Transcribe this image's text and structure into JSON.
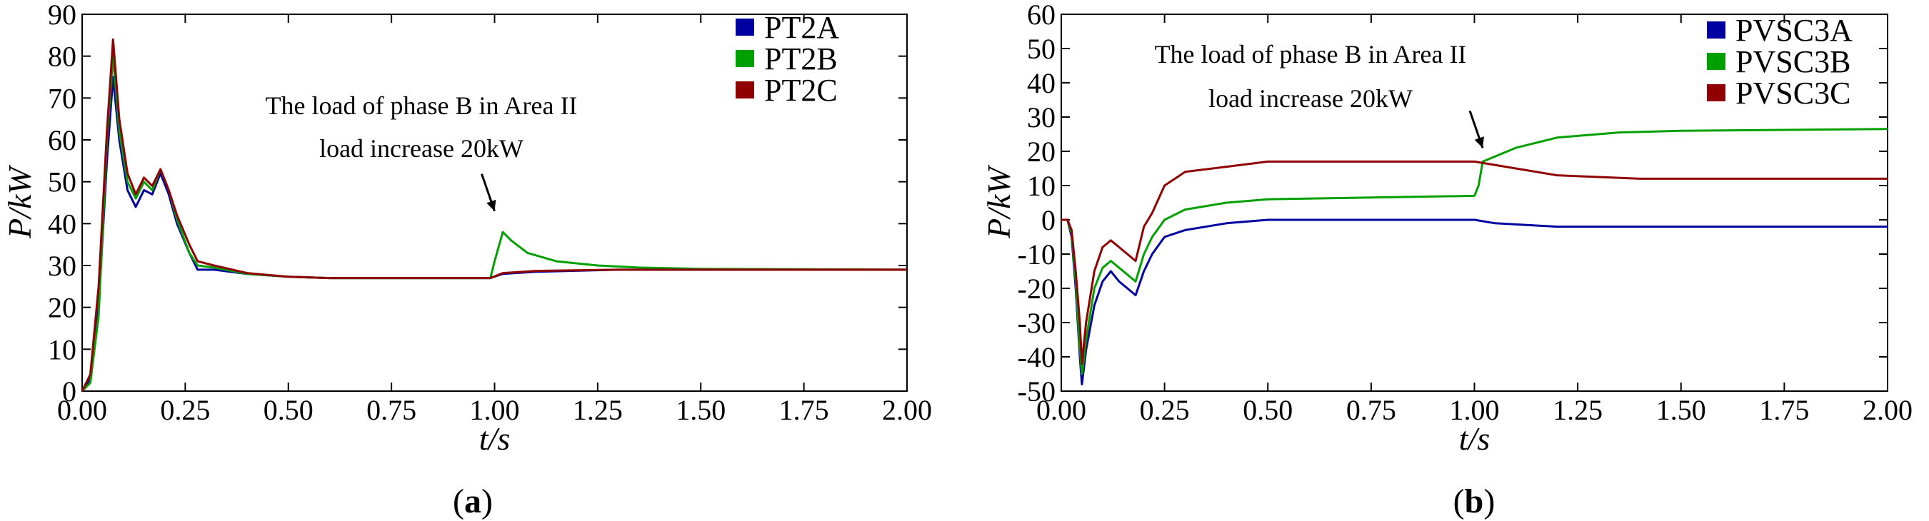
{
  "colors": {
    "A": "#0000a0",
    "B": "#00a000",
    "C": "#900000"
  },
  "chart_data": [
    {
      "type": "line",
      "panel_label": "a",
      "title": "",
      "xlabel": "t/s",
      "ylabel": "P/kW",
      "xlim": [
        0,
        2
      ],
      "ylim": [
        0,
        90
      ],
      "xticks": [
        0.0,
        0.25,
        0.5,
        0.75,
        1.0,
        1.25,
        1.5,
        1.75,
        2.0
      ],
      "xtick_labels": [
        "0.00",
        "0.25",
        "0.50",
        "0.75",
        "1.00",
        "1.25",
        "1.50",
        "1.75",
        "2.00"
      ],
      "yticks": [
        0,
        10,
        20,
        30,
        40,
        50,
        60,
        70,
        80,
        90
      ],
      "ytick_labels": [
        "0",
        "10",
        "20",
        "30",
        "40",
        "50",
        "60",
        "70",
        "80",
        "90"
      ],
      "legend": [
        "PT2A",
        "PT2B",
        "PT2C"
      ],
      "legend_position": "top-right",
      "annotation": {
        "lines": [
          "The load of phase B in Area II",
          "load increase 20kW"
        ],
        "arrow_to": [
          1.0,
          43
        ]
      },
      "series": [
        {
          "name": "PT2A",
          "color_key": "A",
          "points": [
            [
              0,
              0
            ],
            [
              0.02,
              3
            ],
            [
              0.04,
              20
            ],
            [
              0.06,
              55
            ],
            [
              0.075,
              75
            ],
            [
              0.09,
              60
            ],
            [
              0.11,
              48
            ],
            [
              0.13,
              44
            ],
            [
              0.15,
              48
            ],
            [
              0.17,
              47
            ],
            [
              0.19,
              52
            ],
            [
              0.21,
              47
            ],
            [
              0.23,
              40
            ],
            [
              0.26,
              33
            ],
            [
              0.28,
              29
            ],
            [
              0.32,
              29
            ],
            [
              0.4,
              28
            ],
            [
              0.5,
              27.3
            ],
            [
              0.6,
              27
            ],
            [
              0.8,
              27
            ],
            [
              0.99,
              27
            ],
            [
              1.02,
              28
            ],
            [
              1.1,
              28.5
            ],
            [
              1.3,
              29
            ],
            [
              2.0,
              29
            ]
          ]
        },
        {
          "name": "PT2B",
          "color_key": "B",
          "points": [
            [
              0,
              0
            ],
            [
              0.02,
              2
            ],
            [
              0.04,
              18
            ],
            [
              0.06,
              60
            ],
            [
              0.075,
              80
            ],
            [
              0.09,
              62
            ],
            [
              0.11,
              50
            ],
            [
              0.13,
              46
            ],
            [
              0.15,
              50
            ],
            [
              0.17,
              48
            ],
            [
              0.19,
              53
            ],
            [
              0.21,
              48
            ],
            [
              0.23,
              41
            ],
            [
              0.26,
              33
            ],
            [
              0.28,
              30
            ],
            [
              0.32,
              29.5
            ],
            [
              0.4,
              28
            ],
            [
              0.5,
              27.3
            ],
            [
              0.6,
              27
            ],
            [
              0.8,
              27
            ],
            [
              0.99,
              27
            ],
            [
              1.0,
              31
            ],
            [
              1.02,
              38
            ],
            [
              1.04,
              36
            ],
            [
              1.08,
              33
            ],
            [
              1.15,
              31
            ],
            [
              1.25,
              30
            ],
            [
              1.35,
              29.5
            ],
            [
              1.5,
              29.2
            ],
            [
              2.0,
              29
            ]
          ]
        },
        {
          "name": "PT2C",
          "color_key": "C",
          "points": [
            [
              0,
              0
            ],
            [
              0.02,
              4
            ],
            [
              0.04,
              25
            ],
            [
              0.06,
              62
            ],
            [
              0.075,
              84
            ],
            [
              0.09,
              65
            ],
            [
              0.11,
              52
            ],
            [
              0.13,
              47
            ],
            [
              0.15,
              51
            ],
            [
              0.17,
              49
            ],
            [
              0.19,
              53
            ],
            [
              0.21,
              48
            ],
            [
              0.23,
              42
            ],
            [
              0.26,
              35
            ],
            [
              0.28,
              31
            ],
            [
              0.32,
              30
            ],
            [
              0.4,
              28.2
            ],
            [
              0.5,
              27.3
            ],
            [
              0.6,
              27
            ],
            [
              0.8,
              27
            ],
            [
              0.99,
              27
            ],
            [
              1.02,
              28.2
            ],
            [
              1.1,
              28.7
            ],
            [
              1.3,
              29
            ],
            [
              2.0,
              29
            ]
          ]
        }
      ]
    },
    {
      "type": "line",
      "panel_label": "b",
      "title": "",
      "xlabel": "t/s",
      "ylabel": "P/kW",
      "xlim": [
        0,
        2
      ],
      "ylim": [
        -50,
        60
      ],
      "xticks": [
        0.0,
        0.25,
        0.5,
        0.75,
        1.0,
        1.25,
        1.5,
        1.75,
        2.0
      ],
      "xtick_labels": [
        "0.00",
        "0.25",
        "0.50",
        "0.75",
        "1.00",
        "1.25",
        "1.50",
        "1.75",
        "2.00"
      ],
      "yticks": [
        -50,
        -40,
        -30,
        -20,
        -10,
        0,
        10,
        20,
        30,
        40,
        50,
        60
      ],
      "ytick_labels": [
        "-50",
        "-40",
        "-30",
        "-20",
        "-10",
        "0",
        "10",
        "20",
        "30",
        "40",
        "50",
        "60"
      ],
      "legend": [
        "PVSC3A",
        "PVSC3B",
        "PVSC3C"
      ],
      "legend_position": "top-right",
      "annotation": {
        "lines": [
          "The load of phase B in Area II",
          "load increase 20kW"
        ],
        "arrow_to": [
          1.02,
          21
        ]
      },
      "series": [
        {
          "name": "PVSC3A",
          "color_key": "A",
          "points": [
            [
              0,
              0
            ],
            [
              0.015,
              0
            ],
            [
              0.025,
              -5
            ],
            [
              0.035,
              -20
            ],
            [
              0.045,
              -40
            ],
            [
              0.05,
              -48
            ],
            [
              0.06,
              -38
            ],
            [
              0.08,
              -25
            ],
            [
              0.1,
              -18
            ],
            [
              0.12,
              -15
            ],
            [
              0.14,
              -18
            ],
            [
              0.16,
              -20
            ],
            [
              0.18,
              -22
            ],
            [
              0.2,
              -15
            ],
            [
              0.22,
              -10
            ],
            [
              0.25,
              -5
            ],
            [
              0.3,
              -3
            ],
            [
              0.4,
              -1
            ],
            [
              0.5,
              0
            ],
            [
              0.75,
              0
            ],
            [
              1.0,
              0
            ],
            [
              1.05,
              -1
            ],
            [
              1.2,
              -2
            ],
            [
              1.5,
              -2
            ],
            [
              2.0,
              -2
            ]
          ]
        },
        {
          "name": "PVSC3B",
          "color_key": "B",
          "points": [
            [
              0,
              0
            ],
            [
              0.015,
              0
            ],
            [
              0.025,
              -4
            ],
            [
              0.035,
              -18
            ],
            [
              0.045,
              -38
            ],
            [
              0.05,
              -45
            ],
            [
              0.06,
              -35
            ],
            [
              0.08,
              -20
            ],
            [
              0.1,
              -14
            ],
            [
              0.12,
              -12
            ],
            [
              0.14,
              -14
            ],
            [
              0.16,
              -16
            ],
            [
              0.18,
              -18
            ],
            [
              0.2,
              -10
            ],
            [
              0.22,
              -5
            ],
            [
              0.25,
              0
            ],
            [
              0.3,
              3
            ],
            [
              0.4,
              5
            ],
            [
              0.5,
              6
            ],
            [
              0.75,
              6.5
            ],
            [
              1.0,
              7
            ],
            [
              1.01,
              10
            ],
            [
              1.02,
              17
            ],
            [
              1.04,
              18
            ],
            [
              1.1,
              21
            ],
            [
              1.2,
              24
            ],
            [
              1.35,
              25.5
            ],
            [
              1.5,
              26
            ],
            [
              2.0,
              26.5
            ]
          ]
        },
        {
          "name": "PVSC3C",
          "color_key": "C",
          "points": [
            [
              0,
              0
            ],
            [
              0.015,
              0
            ],
            [
              0.025,
              -3
            ],
            [
              0.035,
              -15
            ],
            [
              0.045,
              -30
            ],
            [
              0.05,
              -42
            ],
            [
              0.06,
              -30
            ],
            [
              0.08,
              -15
            ],
            [
              0.1,
              -8
            ],
            [
              0.12,
              -6
            ],
            [
              0.14,
              -8
            ],
            [
              0.16,
              -10
            ],
            [
              0.18,
              -12
            ],
            [
              0.2,
              -2
            ],
            [
              0.22,
              2
            ],
            [
              0.25,
              10
            ],
            [
              0.3,
              14
            ],
            [
              0.4,
              15.5
            ],
            [
              0.5,
              17
            ],
            [
              0.75,
              17
            ],
            [
              1.0,
              17
            ],
            [
              1.1,
              15
            ],
            [
              1.2,
              13
            ],
            [
              1.4,
              12
            ],
            [
              2.0,
              12
            ]
          ]
        }
      ]
    }
  ]
}
